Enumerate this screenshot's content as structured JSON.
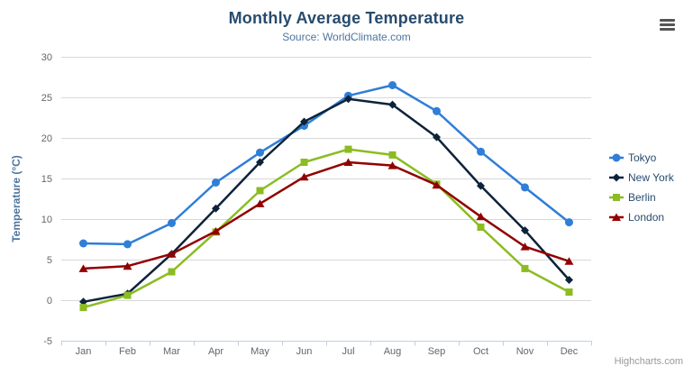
{
  "chart": {
    "credits": "Highcharts.com",
    "menu_icon": "hamburger-icon"
  },
  "chart_data": {
    "type": "line",
    "title": "Monthly Average Temperature",
    "subtitle": "Source: WorldClimate.com",
    "xlabel": "",
    "ylabel": "Temperature (°C)",
    "categories": [
      "Jan",
      "Feb",
      "Mar",
      "Apr",
      "May",
      "Jun",
      "Jul",
      "Aug",
      "Sep",
      "Oct",
      "Nov",
      "Dec"
    ],
    "ylim": [
      -5,
      30
    ],
    "yticks": [
      -5,
      0,
      5,
      10,
      15,
      20,
      25,
      30
    ],
    "grid": "horizontal",
    "legend_position": "right",
    "series": [
      {
        "name": "Tokyo",
        "color": "#2f7ed8",
        "marker": "circle",
        "values": [
          7.0,
          6.9,
          9.5,
          14.5,
          18.2,
          21.5,
          25.2,
          26.5,
          23.3,
          18.3,
          13.9,
          9.6
        ]
      },
      {
        "name": "New York",
        "color": "#0d233a",
        "marker": "diamond",
        "values": [
          -0.2,
          0.8,
          5.7,
          11.3,
          17.0,
          22.0,
          24.8,
          24.1,
          20.1,
          14.1,
          8.6,
          2.5
        ]
      },
      {
        "name": "Berlin",
        "color": "#8bbc21",
        "marker": "square",
        "values": [
          -0.9,
          0.6,
          3.5,
          8.4,
          13.5,
          17.0,
          18.6,
          17.9,
          14.3,
          9.0,
          3.9,
          1.0
        ]
      },
      {
        "name": "London",
        "color": "#910000",
        "marker": "triangle",
        "values": [
          3.9,
          4.2,
          5.7,
          8.5,
          11.9,
          15.2,
          17.0,
          16.6,
          14.2,
          10.3,
          6.6,
          4.8
        ]
      }
    ],
    "colors": {
      "title_text": "#274b6d",
      "subtitle_text": "#4d759e",
      "axis_title_text": "#4d759e",
      "axis_label_text": "#666666",
      "grid_line": "#d8d8d8",
      "axis_line": "#c0d0e0",
      "legend_text": "#274b6d",
      "credits_text": "#999999"
    }
  }
}
